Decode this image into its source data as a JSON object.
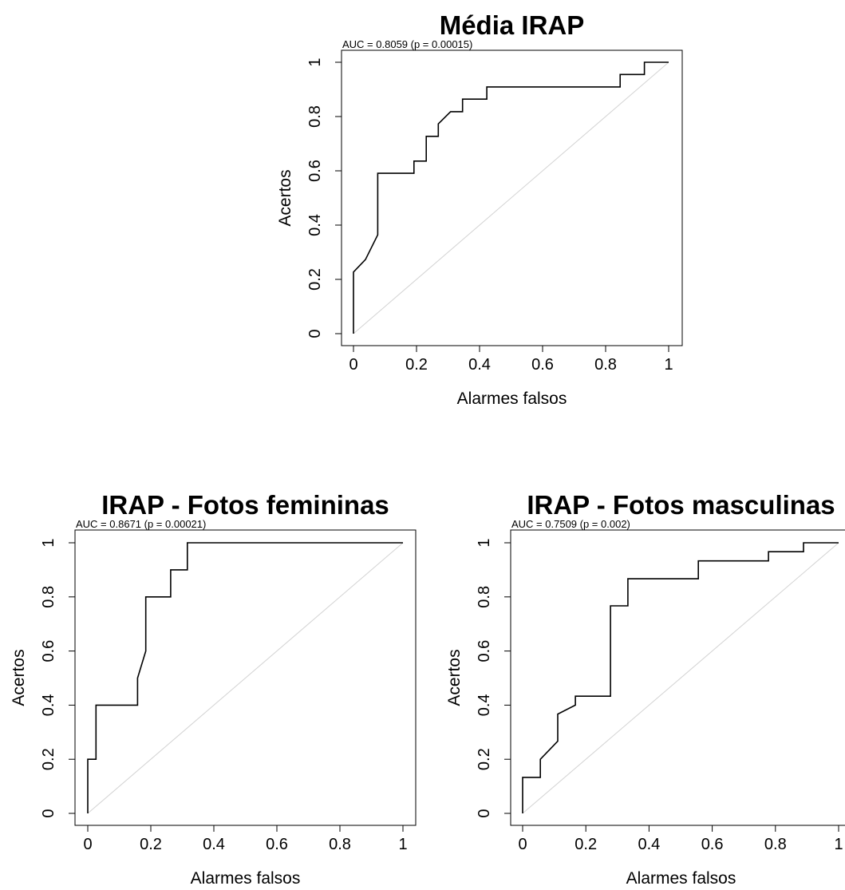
{
  "chart_data": [
    {
      "type": "line",
      "title": "Média IRAP",
      "annotation": "AUC = 0.8059 (p = 0.00015)",
      "xlabel": "Alarmes falsos",
      "ylabel": "Acertos",
      "xlim": [
        0,
        1
      ],
      "ylim": [
        0,
        1
      ],
      "xticks": [
        "0",
        "0.2",
        "0.4",
        "0.6",
        "0.8",
        "1"
      ],
      "yticks": [
        "0",
        "0.2",
        "0.4",
        "0.6",
        "0.8",
        "1"
      ],
      "grid": false,
      "reference_line": [
        [
          0,
          0
        ],
        [
          1,
          1
        ]
      ],
      "series": [
        {
          "x": [
            0,
            0,
            0.038,
            0.077,
            0.077,
            0.192,
            0.192,
            0.231,
            0.231,
            0.269,
            0.269,
            0.308,
            0.346,
            0.346,
            0.423,
            0.423,
            0.846,
            0.846,
            0.923,
            0.923,
            1
          ],
          "y": [
            0,
            0.227,
            0.273,
            0.364,
            0.591,
            0.591,
            0.636,
            0.636,
            0.727,
            0.727,
            0.773,
            0.818,
            0.818,
            0.864,
            0.864,
            0.909,
            0.909,
            0.955,
            0.955,
            1,
            1
          ]
        }
      ]
    },
    {
      "type": "line",
      "title": "IRAP - Fotos femininas",
      "annotation": "AUC = 0.8671 (p = 0.00021)",
      "xlabel": "Alarmes falsos",
      "ylabel": "Acertos",
      "xlim": [
        0,
        1
      ],
      "ylim": [
        0,
        1
      ],
      "xticks": [
        "0",
        "0.2",
        "0.4",
        "0.6",
        "0.8",
        "1"
      ],
      "yticks": [
        "0",
        "0.2",
        "0.4",
        "0.6",
        "0.8",
        "1"
      ],
      "grid": false,
      "reference_line": [
        [
          0,
          0
        ],
        [
          1,
          1
        ]
      ],
      "series": [
        {
          "x": [
            0,
            0,
            0.026,
            0.026,
            0.158,
            0.158,
            0.184,
            0.184,
            0.263,
            0.263,
            0.316,
            0.316,
            1
          ],
          "y": [
            0,
            0.2,
            0.2,
            0.4,
            0.4,
            0.5,
            0.6,
            0.8,
            0.8,
            0.9,
            0.9,
            1,
            1
          ]
        }
      ]
    },
    {
      "type": "line",
      "title": "IRAP - Fotos masculinas",
      "annotation": "AUC = 0.7509 (p = 0.002)",
      "xlabel": "Alarmes falsos",
      "ylabel": "Acertos",
      "xlim": [
        0,
        1
      ],
      "ylim": [
        0,
        1
      ],
      "xticks": [
        "0",
        "0.2",
        "0.4",
        "0.6",
        "0.8",
        "1"
      ],
      "yticks": [
        "0",
        "0.2",
        "0.4",
        "0.6",
        "0.8",
        "1"
      ],
      "grid": false,
      "reference_line": [
        [
          0,
          0
        ],
        [
          1,
          1
        ]
      ],
      "series": [
        {
          "x": [
            0,
            0,
            0.056,
            0.056,
            0.111,
            0.111,
            0.167,
            0.167,
            0.278,
            0.278,
            0.333,
            0.333,
            0.556,
            0.556,
            0.778,
            0.778,
            0.889,
            0.889,
            1
          ],
          "y": [
            0,
            0.133,
            0.133,
            0.2,
            0.267,
            0.367,
            0.4,
            0.433,
            0.433,
            0.767,
            0.767,
            0.867,
            0.867,
            0.933,
            0.933,
            0.967,
            0.967,
            1,
            1
          ]
        }
      ]
    }
  ]
}
